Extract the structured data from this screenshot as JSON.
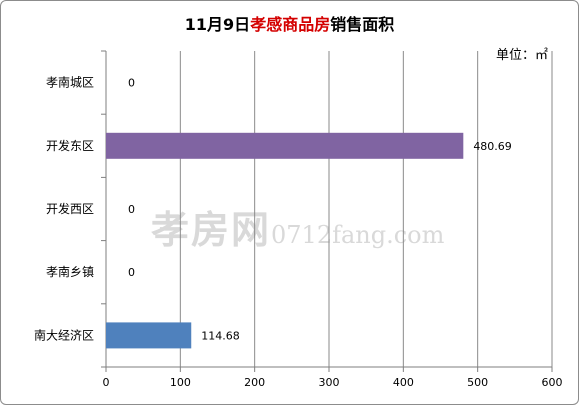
{
  "chart_data": {
    "type": "bar",
    "orientation": "horizontal",
    "title_parts": [
      {
        "text": "11月9日",
        "color": "#000000"
      },
      {
        "text": "孝感商品房",
        "color": "#d40000"
      },
      {
        "text": "销售面积",
        "color": "#000000"
      }
    ],
    "unit": "单位：㎡",
    "categories": [
      "孝南城区",
      "开发东区",
      "开发西区",
      "孝南乡镇",
      "南大经济区"
    ],
    "values": [
      0,
      480.69,
      0,
      0,
      114.68
    ],
    "data_labels": [
      "0",
      "480.69",
      "0",
      "0",
      "114.68"
    ],
    "bar_colors": [
      "#4f81bd",
      "#8064a2",
      "#4f81bd",
      "#4f81bd",
      "#4f81bd"
    ],
    "xlim": [
      0,
      600
    ],
    "xticks": [
      0,
      100,
      200,
      300,
      400,
      500,
      600
    ],
    "grid": true,
    "legend": "none"
  },
  "watermark": {
    "big": "孝房网",
    "small": "0712fang.com"
  }
}
